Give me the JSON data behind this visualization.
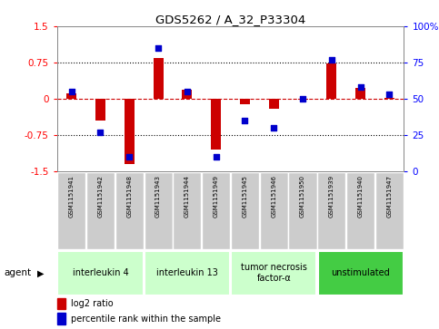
{
  "title": "GDS5262 / A_32_P33304",
  "samples": [
    "GSM1151941",
    "GSM1151942",
    "GSM1151948",
    "GSM1151943",
    "GSM1151944",
    "GSM1151949",
    "GSM1151945",
    "GSM1151946",
    "GSM1151950",
    "GSM1151939",
    "GSM1151940",
    "GSM1151947"
  ],
  "log2_ratio": [
    0.12,
    -0.45,
    -1.35,
    0.85,
    0.18,
    -1.05,
    -0.12,
    -0.2,
    -0.03,
    0.73,
    0.22,
    0.02
  ],
  "percentile_rank": [
    55,
    27,
    10,
    85,
    55,
    10,
    35,
    30,
    50,
    77,
    58,
    53
  ],
  "groups": [
    {
      "label": "interleukin 4",
      "start": 0,
      "end": 3,
      "color": "#ccffcc"
    },
    {
      "label": "interleukin 13",
      "start": 3,
      "end": 6,
      "color": "#ccffcc"
    },
    {
      "label": "tumor necrosis\nfactor-α",
      "start": 6,
      "end": 9,
      "color": "#ccffcc"
    },
    {
      "label": "unstimulated",
      "start": 9,
      "end": 12,
      "color": "#44cc44"
    }
  ],
  "ylim_left": [
    -1.5,
    1.5
  ],
  "ylim_right": [
    0,
    100
  ],
  "yticks_left": [
    -1.5,
    -0.75,
    0,
    0.75,
    1.5
  ],
  "yticks_right": [
    0,
    25,
    50,
    75,
    100
  ],
  "bar_color": "#cc0000",
  "dot_color": "#0000cc",
  "hline_color": "#cc0000",
  "dotted_color": "#000000",
  "bar_width": 0.35,
  "dot_size": 18
}
